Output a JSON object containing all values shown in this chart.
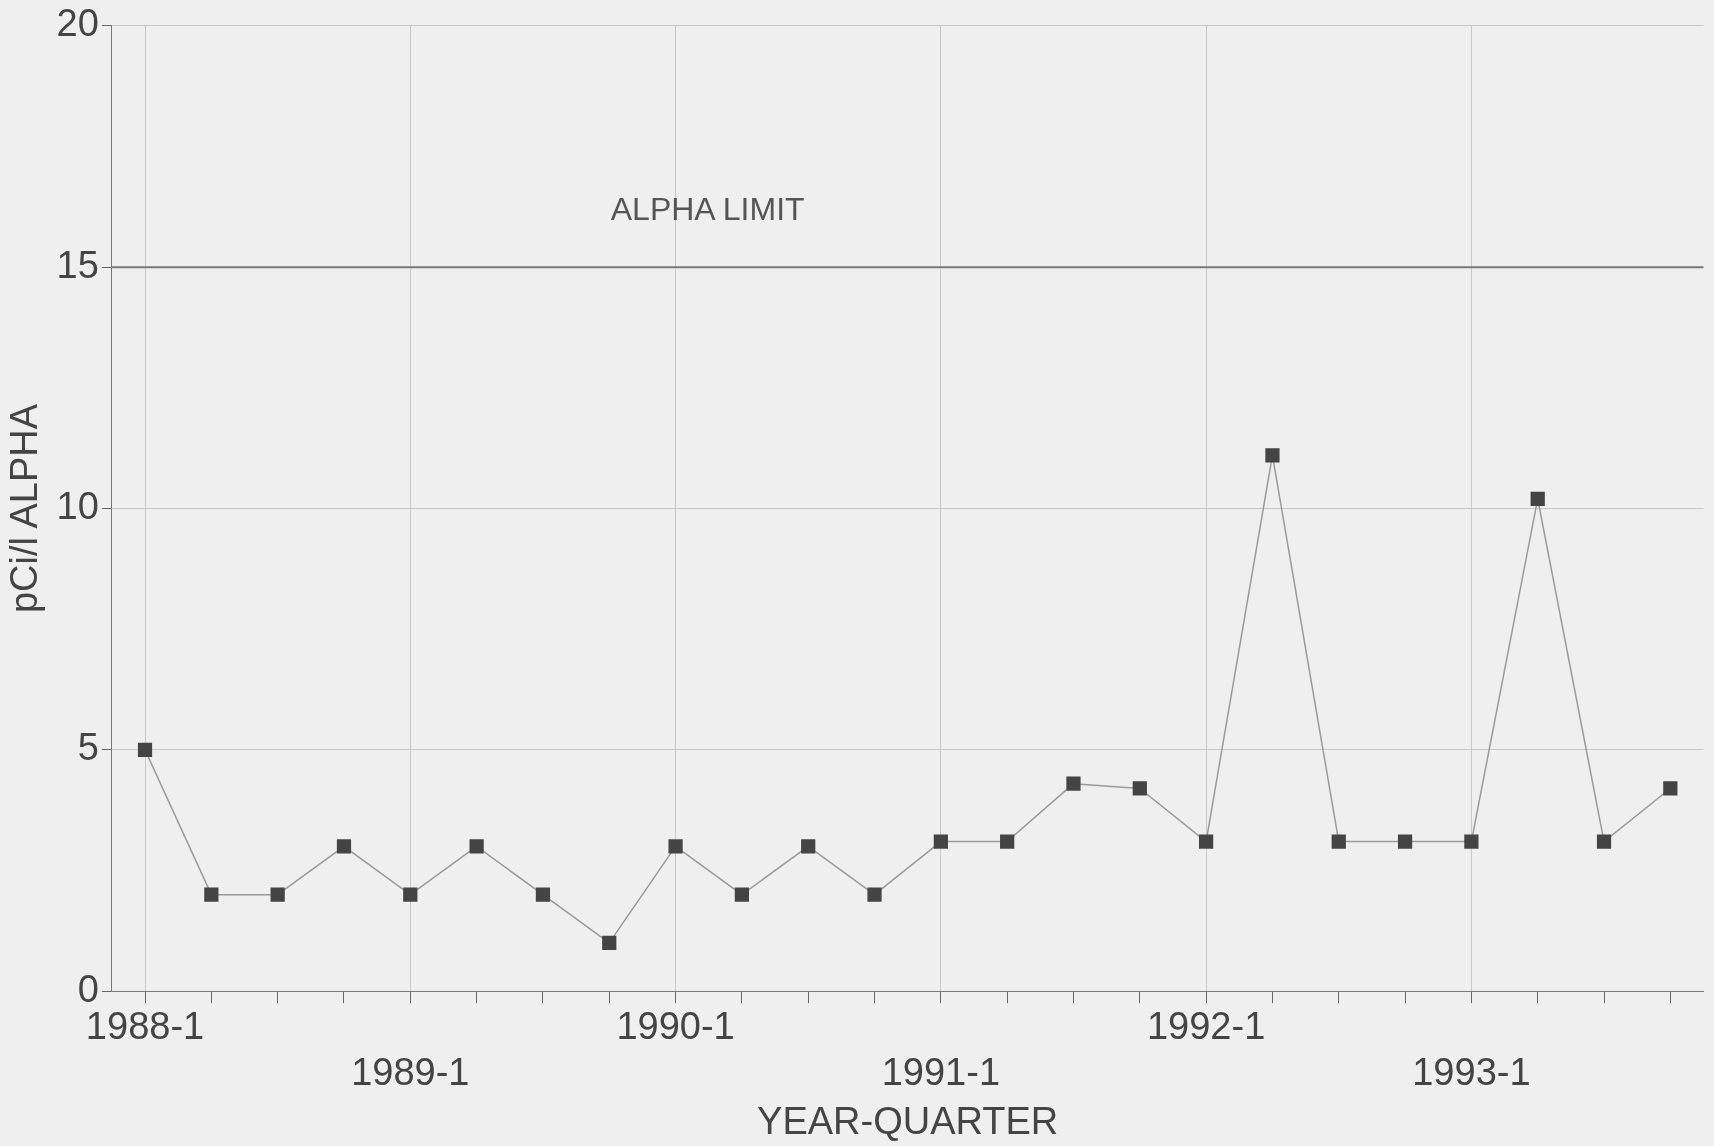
{
  "chart_data": {
    "type": "line",
    "xlabel": "YEAR-QUARTER",
    "ylabel": "pCi/l ALPHA",
    "categories": [
      "1988-1",
      null,
      null,
      null,
      "1989-1",
      null,
      null,
      null,
      "1990-1",
      null,
      null,
      null,
      "1991-1",
      null,
      null,
      null,
      "1992-1",
      null,
      null,
      null,
      "1993-1",
      null,
      null,
      null
    ],
    "series": [
      {
        "color": "#444444",
        "values": [
          5,
          2,
          2,
          3,
          2,
          3,
          2,
          1,
          3,
          2,
          3,
          2,
          3.1,
          3.1,
          4.3,
          4.2,
          3.1,
          11.1,
          3.1,
          3.1,
          3.1,
          10.2,
          3.1,
          4.2
        ]
      }
    ],
    "ylim": [
      0,
      20
    ],
    "yticks": [
      0,
      5,
      10,
      15,
      20
    ],
    "grid": true,
    "legend": false,
    "marker": "square",
    "line_style": "solid",
    "ref_lines": [
      {
        "axis": "y",
        "value": 15,
        "label": "ALPHA LIMIT",
        "color": "#777777"
      }
    ]
  }
}
